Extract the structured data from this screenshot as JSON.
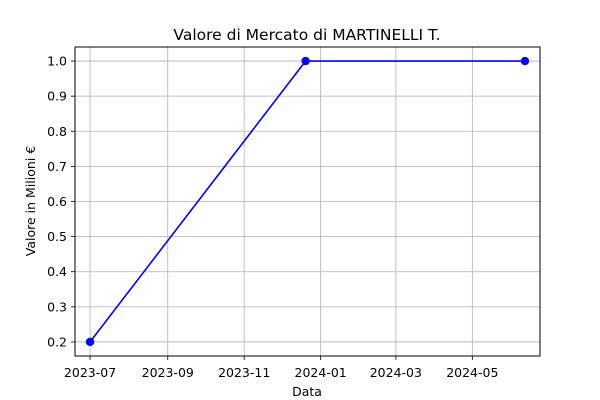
{
  "chart_data": {
    "type": "line",
    "title": "Valore di Mercato di MARTINELLI T.",
    "xlabel": "Data",
    "ylabel": "Valore in Milioni €",
    "x_ticks": [
      "2023-07",
      "2023-09",
      "2023-11",
      "2024-01",
      "2024-03",
      "2024-05"
    ],
    "y_ticks": [
      "0.2",
      "0.3",
      "0.4",
      "0.5",
      "0.6",
      "0.7",
      "0.8",
      "0.9",
      "1.0"
    ],
    "xlim": [
      "2023-06-19",
      "2024-06-24"
    ],
    "ylim": [
      0.16,
      1.04
    ],
    "grid": true,
    "series": [
      {
        "color": "#0000ff",
        "marker": "circle",
        "points": [
          {
            "x": "2023-07-01",
            "y": 0.2
          },
          {
            "x": "2023-12-20",
            "y": 1.0
          },
          {
            "x": "2024-06-12",
            "y": 1.0
          }
        ]
      }
    ]
  }
}
